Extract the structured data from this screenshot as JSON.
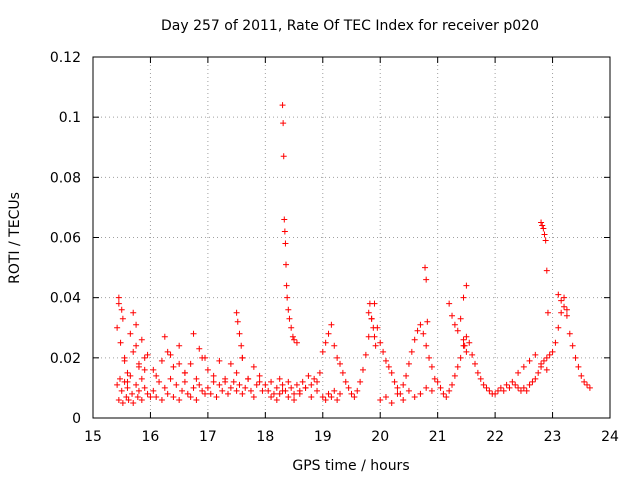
{
  "chart_data": {
    "type": "scatter",
    "title": "Day 257 of 2011, Rate Of TEC Index for receiver p020",
    "xlabel": "GPS time / hours",
    "ylabel": "ROTI / TECUs",
    "xlim": [
      15,
      24
    ],
    "ylim": [
      0,
      0.12
    ],
    "x_ticks": [
      "15",
      "16",
      "17",
      "18",
      "19",
      "20",
      "21",
      "22",
      "23",
      "24"
    ],
    "y_ticks": [
      "0",
      "0.02",
      "0.04",
      "0.06",
      "0.08",
      "0.1",
      "0.12"
    ],
    "grid": true,
    "marker": "+",
    "marker_color": "#ff0000",
    "series": [
      {
        "x": [
          15.42,
          15.45,
          15.47,
          15.5,
          15.52,
          15.55,
          15.58,
          15.6,
          15.62,
          15.65,
          15.68,
          15.7,
          15.75,
          15.78,
          15.8,
          15.85,
          15.9,
          15.95,
          16.0,
          15.42,
          15.45,
          15.48,
          15.52,
          15.55,
          15.6,
          15.65,
          15.7,
          15.75,
          15.8,
          15.85,
          15.9,
          15.95,
          15.45,
          15.5,
          15.55,
          15.6,
          15.7,
          15.75,
          15.8,
          15.85,
          15.9,
          16.05,
          16.1,
          16.15,
          16.2,
          16.25,
          16.3,
          16.35,
          16.4,
          16.45,
          16.5,
          16.55,
          16.6,
          16.65,
          16.7,
          16.75,
          16.8,
          16.85,
          16.9,
          16.95,
          16.05,
          16.1,
          16.2,
          16.3,
          16.4,
          16.5,
          16.6,
          16.7,
          16.8,
          16.9,
          16.25,
          16.35,
          16.5,
          16.6,
          16.75,
          16.85,
          16.95,
          17.0,
          17.05,
          17.1,
          17.15,
          17.2,
          17.25,
          17.3,
          17.35,
          17.4,
          17.45,
          17.5,
          17.55,
          17.6,
          17.65,
          17.7,
          17.75,
          17.8,
          17.85,
          17.9,
          17.95,
          17.0,
          17.1,
          17.2,
          17.3,
          17.4,
          17.5,
          17.6,
          17.7,
          17.8,
          17.9,
          17.5,
          17.52,
          17.55,
          17.58,
          17.6,
          18.0,
          18.05,
          18.1,
          18.15,
          18.2,
          18.25,
          18.3,
          18.35,
          18.4,
          18.45,
          18.5,
          18.55,
          18.6,
          18.65,
          18.7,
          18.75,
          18.8,
          18.85,
          18.9,
          18.95,
          18.3,
          18.31,
          18.32,
          18.33,
          18.34,
          18.35,
          18.36,
          18.37,
          18.38,
          18.4,
          18.42,
          18.45,
          18.48,
          18.5,
          18.55,
          18.1,
          18.2,
          18.25,
          18.3,
          18.4,
          18.5,
          18.6,
          18.7,
          18.8,
          18.9,
          19.0,
          19.05,
          19.1,
          19.15,
          19.2,
          19.25,
          19.3,
          19.35,
          19.4,
          19.45,
          19.5,
          19.55,
          19.6,
          19.65,
          19.7,
          19.75,
          19.8,
          19.85,
          19.9,
          19.95,
          19.0,
          19.05,
          19.1,
          19.15,
          19.2,
          19.25,
          19.3,
          19.8,
          19.82,
          19.85,
          19.88,
          19.9,
          19.92,
          20.0,
          20.05,
          20.1,
          20.15,
          20.2,
          20.25,
          20.3,
          20.35,
          20.4,
          20.45,
          20.5,
          20.55,
          20.6,
          20.65,
          20.7,
          20.75,
          20.8,
          20.85,
          20.9,
          20.95,
          20.0,
          20.1,
          20.2,
          20.3,
          20.4,
          20.5,
          20.6,
          20.7,
          20.8,
          20.9,
          20.78,
          20.8,
          20.82,
          21.0,
          21.05,
          21.1,
          21.15,
          21.2,
          21.25,
          21.3,
          21.35,
          21.4,
          21.45,
          21.5,
          21.55,
          21.6,
          21.65,
          21.7,
          21.75,
          21.8,
          21.85,
          21.9,
          21.95,
          21.2,
          21.25,
          21.3,
          21.35,
          21.4,
          21.45,
          21.5,
          21.45,
          21.47,
          21.5,
          22.0,
          22.05,
          22.1,
          22.15,
          22.2,
          22.25,
          22.3,
          22.35,
          22.4,
          22.45,
          22.5,
          22.55,
          22.6,
          22.65,
          22.7,
          22.75,
          22.8,
          22.85,
          22.9,
          22.95,
          22.4,
          22.5,
          22.6,
          22.7,
          22.8,
          22.9,
          22.8,
          22.82,
          22.84,
          22.86,
          22.88,
          22.9,
          22.92,
          23.0,
          23.05,
          23.1,
          23.15,
          23.2,
          23.25,
          23.3,
          23.35,
          23.4,
          23.45,
          23.5,
          23.55,
          23.6,
          23.65,
          23.1,
          23.15,
          23.2,
          23.25
        ],
        "y": [
          0.011,
          0.006,
          0.013,
          0.009,
          0.005,
          0.012,
          0.007,
          0.01,
          0.006,
          0.014,
          0.008,
          0.005,
          0.011,
          0.007,
          0.009,
          0.006,
          0.01,
          0.008,
          0.007,
          0.03,
          0.038,
          0.025,
          0.033,
          0.02,
          0.015,
          0.028,
          0.022,
          0.031,
          0.018,
          0.026,
          0.016,
          0.021,
          0.04,
          0.036,
          0.019,
          0.012,
          0.035,
          0.024,
          0.017,
          0.013,
          0.02,
          0.009,
          0.007,
          0.012,
          0.006,
          0.01,
          0.008,
          0.013,
          0.007,
          0.011,
          0.006,
          0.009,
          0.012,
          0.008,
          0.007,
          0.01,
          0.006,
          0.011,
          0.009,
          0.008,
          0.016,
          0.014,
          0.019,
          0.022,
          0.017,
          0.024,
          0.015,
          0.018,
          0.013,
          0.02,
          0.027,
          0.021,
          0.018,
          0.015,
          0.028,
          0.023,
          0.02,
          0.01,
          0.008,
          0.012,
          0.007,
          0.011,
          0.009,
          0.013,
          0.008,
          0.01,
          0.012,
          0.009,
          0.011,
          0.008,
          0.01,
          0.013,
          0.009,
          0.007,
          0.011,
          0.012,
          0.009,
          0.016,
          0.014,
          0.019,
          0.012,
          0.018,
          0.015,
          0.02,
          0.013,
          0.017,
          0.014,
          0.035,
          0.032,
          0.028,
          0.024,
          0.02,
          0.011,
          0.009,
          0.012,
          0.008,
          0.01,
          0.013,
          0.011,
          0.009,
          0.012,
          0.01,
          0.008,
          0.011,
          0.009,
          0.012,
          0.01,
          0.014,
          0.011,
          0.013,
          0.012,
          0.015,
          0.104,
          0.098,
          0.087,
          0.066,
          0.062,
          0.058,
          0.051,
          0.044,
          0.04,
          0.036,
          0.033,
          0.03,
          0.027,
          0.026,
          0.025,
          0.007,
          0.006,
          0.008,
          0.009,
          0.007,
          0.006,
          0.008,
          0.01,
          0.007,
          0.009,
          0.022,
          0.025,
          0.028,
          0.031,
          0.024,
          0.02,
          0.018,
          0.015,
          0.012,
          0.01,
          0.008,
          0.007,
          0.009,
          0.012,
          0.016,
          0.021,
          0.027,
          0.033,
          0.038,
          0.03,
          0.007,
          0.006,
          0.008,
          0.007,
          0.009,
          0.006,
          0.008,
          0.035,
          0.038,
          0.033,
          0.03,
          0.027,
          0.024,
          0.025,
          0.022,
          0.019,
          0.017,
          0.015,
          0.012,
          0.01,
          0.008,
          0.011,
          0.014,
          0.018,
          0.022,
          0.026,
          0.029,
          0.031,
          0.028,
          0.024,
          0.02,
          0.017,
          0.013,
          0.006,
          0.007,
          0.005,
          0.008,
          0.006,
          0.009,
          0.007,
          0.008,
          0.01,
          0.009,
          0.05,
          0.046,
          0.032,
          0.012,
          0.01,
          0.008,
          0.007,
          0.009,
          0.011,
          0.014,
          0.017,
          0.02,
          0.024,
          0.027,
          0.025,
          0.021,
          0.018,
          0.015,
          0.013,
          0.011,
          0.01,
          0.009,
          0.008,
          0.038,
          0.034,
          0.031,
          0.029,
          0.033,
          0.04,
          0.044,
          0.026,
          0.024,
          0.022,
          0.008,
          0.009,
          0.01,
          0.009,
          0.011,
          0.01,
          0.012,
          0.011,
          0.01,
          0.009,
          0.01,
          0.009,
          0.011,
          0.012,
          0.013,
          0.015,
          0.017,
          0.019,
          0.02,
          0.021,
          0.015,
          0.017,
          0.019,
          0.021,
          0.018,
          0.016,
          0.065,
          0.064,
          0.063,
          0.061,
          0.059,
          0.049,
          0.035,
          0.022,
          0.025,
          0.03,
          0.035,
          0.04,
          0.036,
          0.028,
          0.024,
          0.02,
          0.017,
          0.014,
          0.012,
          0.011,
          0.01,
          0.041,
          0.039,
          0.037,
          0.034
        ]
      }
    ]
  }
}
